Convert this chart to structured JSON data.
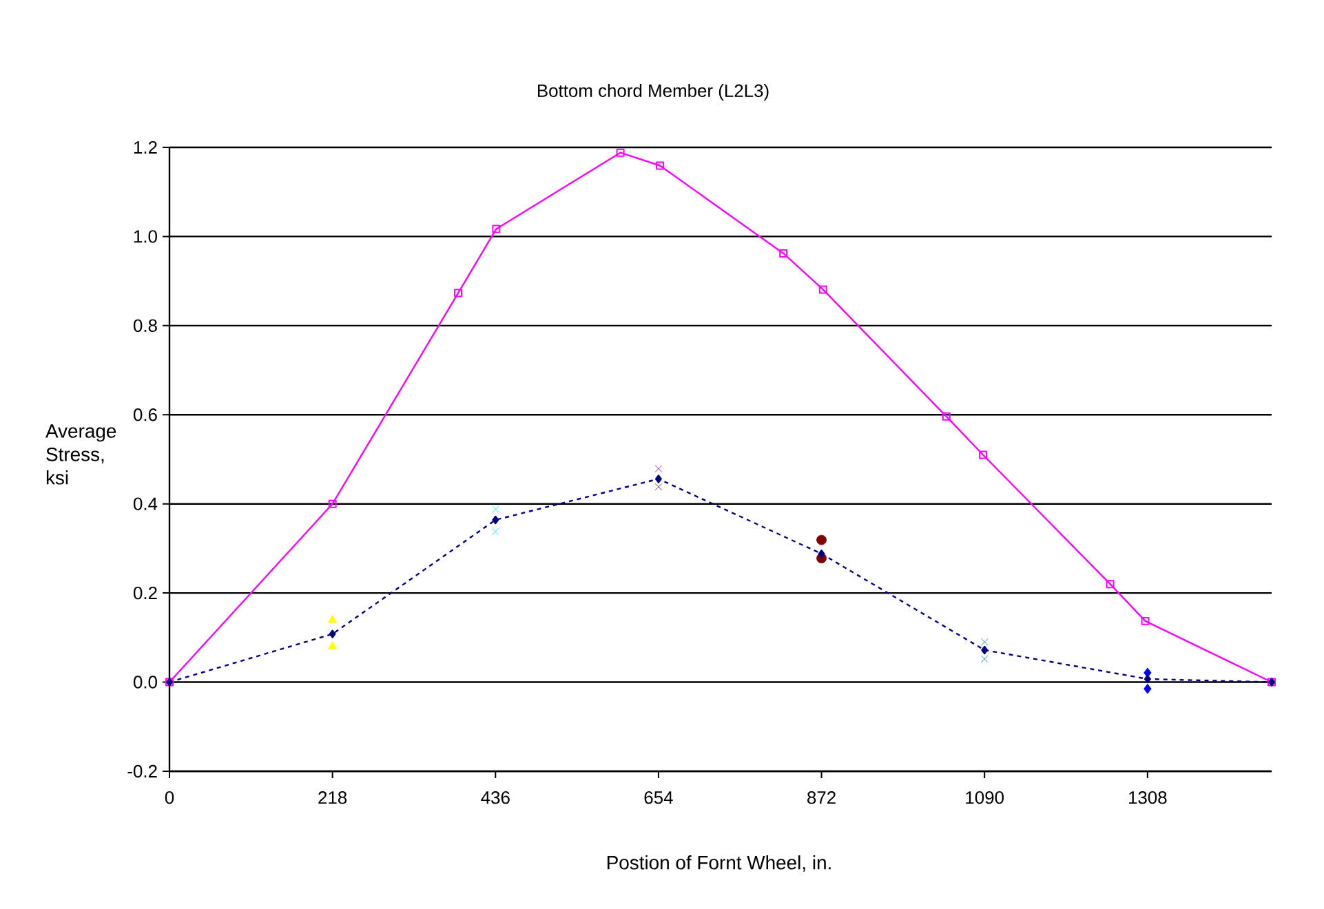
{
  "chart_data": {
    "type": "line",
    "title": "Bottom chord Member (L2L3)",
    "xlabel": "Postion of Fornt Wheel, in.",
    "ylabel": "Average Stress, ksi",
    "xlim": [
      0,
      1474
    ],
    "ylim": [
      -0.2,
      1.2
    ],
    "xticks": [
      0,
      218,
      436,
      654,
      872,
      1090,
      1308
    ],
    "yticks": [
      {
        "value": -0.2,
        "label": "-0.2"
      },
      {
        "value": 0,
        "label": "0.0"
      },
      {
        "value": 0.2,
        "label": "0.2"
      },
      {
        "value": 0.4,
        "label": "0.4"
      },
      {
        "value": 0.6,
        "label": "0.6"
      },
      {
        "value": 0.8,
        "label": "0.8"
      },
      {
        "value": 1.0,
        "label": "1.0"
      },
      {
        "value": 1.2,
        "label": "1.2"
      }
    ],
    "grid": "y",
    "series": [
      {
        "color": "#ff00ff",
        "marker": "square",
        "line_style": "solid",
        "x": [
          0,
          218,
          386,
          437,
          603,
          656,
          821,
          874,
          1039,
          1088,
          1258,
          1305,
          1474
        ],
        "values": [
          0,
          0.4,
          0.873,
          1.017,
          1.188,
          1.159,
          0.962,
          0.881,
          0.596,
          0.51,
          0.22,
          0.137,
          0
        ]
      },
      {
        "color": "#000080",
        "marker": "diamond",
        "line_style": "dashed",
        "x": [
          0,
          218,
          436,
          654,
          872,
          1090,
          1308,
          1474
        ],
        "values": [
          0,
          0.108,
          0.364,
          0.456,
          0.288,
          0.072,
          0.007,
          0
        ]
      },
      {
        "type": "scatter",
        "color": "#ffff00",
        "marker": "triangle",
        "x": [
          218,
          218
        ],
        "values": [
          0.139,
          0.08
        ]
      },
      {
        "type": "scatter",
        "color": "#00ffff",
        "marker": "cross",
        "x": [
          436,
          436
        ],
        "values": [
          0.388,
          0.338
        ]
      },
      {
        "type": "scatter",
        "color": "#800080",
        "marker": "cross",
        "x": [
          654,
          654
        ],
        "values": [
          0.479,
          0.438
        ]
      },
      {
        "type": "scatter",
        "color": "#800000",
        "marker": "circle",
        "x": [
          872,
          872
        ],
        "values": [
          0.319,
          0.278
        ]
      },
      {
        "type": "scatter",
        "color": "#008080",
        "marker": "cross",
        "x": [
          1090,
          1090
        ],
        "values": [
          0.09,
          0.052
        ]
      },
      {
        "type": "scatter",
        "color": "#0000ff",
        "marker": "diamond",
        "x": [
          1308,
          1308
        ],
        "values": [
          0.021,
          -0.015
        ]
      }
    ]
  }
}
